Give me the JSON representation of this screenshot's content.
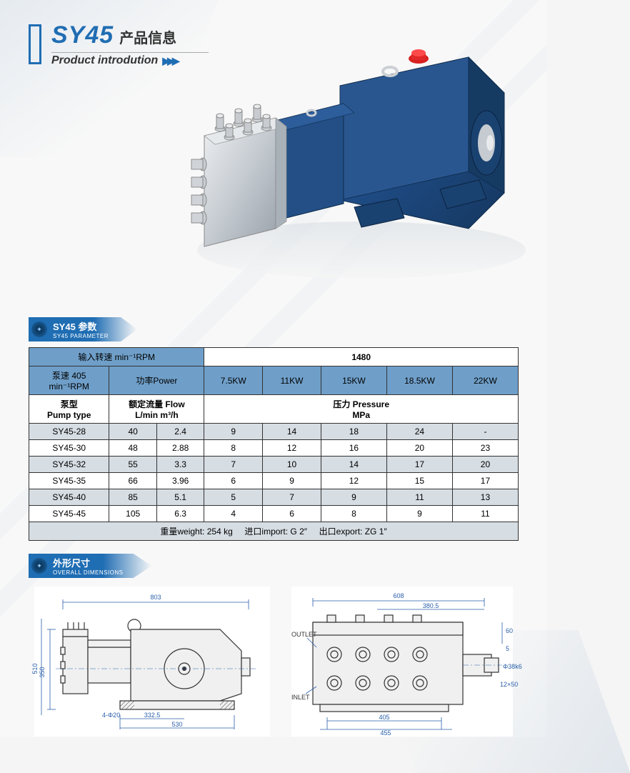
{
  "header": {
    "model": "SY45",
    "info_cn": "产品信息",
    "subtitle_en": "Product introdution",
    "accent_color": "#1f6db3"
  },
  "section_param": {
    "title_cn": "SY45  参数",
    "title_en": "SY45  PARAMETER"
  },
  "section_dims": {
    "title_cn": "外形尺寸",
    "title_en": "OVERALL  DIMENSIONS"
  },
  "table": {
    "header_row1": {
      "input_speed": "输入转速 min⁻¹RPM",
      "rpm_value": "1480"
    },
    "header_row2": {
      "pump_speed_label": "泵速   405\nmin⁻¹RPM",
      "power_label": "功率Power",
      "power_cols": [
        "7.5KW",
        "11KW",
        "15KW",
        "18.5KW",
        "22KW"
      ]
    },
    "header_row3": {
      "pump_type_label": "泵型\nPump type",
      "flow_label": "额定流量 Flow\nL/min   m³/h",
      "pressure_label": "压力 Pressure\nMPa"
    },
    "rows": [
      {
        "type": "SY45-28",
        "lmin": "40",
        "m3h": "2.4",
        "p": [
          "9",
          "14",
          "18",
          "24",
          "-"
        ]
      },
      {
        "type": "SY45-30",
        "lmin": "48",
        "m3h": "2.88",
        "p": [
          "8",
          "12",
          "16",
          "20",
          "23"
        ]
      },
      {
        "type": "SY45-32",
        "lmin": "55",
        "m3h": "3.3",
        "p": [
          "7",
          "10",
          "14",
          "17",
          "20"
        ]
      },
      {
        "type": "SY45-35",
        "lmin": "66",
        "m3h": "3.96",
        "p": [
          "6",
          "9",
          "12",
          "15",
          "17"
        ]
      },
      {
        "type": "SY45-40",
        "lmin": "85",
        "m3h": "5.1",
        "p": [
          "5",
          "7",
          "9",
          "11",
          "13"
        ]
      },
      {
        "type": "SY45-45",
        "lmin": "105",
        "m3h": "6.3",
        "p": [
          "4",
          "6",
          "8",
          "9",
          "11"
        ]
      }
    ],
    "footer": "重量weight: 254 kg     进口import: G 2″     出口export: ZG 1″",
    "colors": {
      "header_blue": "#6f9fc9",
      "row_grey": "#d6dde3",
      "row_white": "#ffffff",
      "border": "#333333"
    }
  },
  "drawing_left": {
    "dims": {
      "overall_length": "803",
      "mid_length_1": "332.5",
      "mid_length_2": "530",
      "height_1": "350",
      "height_2": "510",
      "bolt": "4-Φ20"
    }
  },
  "drawing_right": {
    "dims": {
      "overall_length": "608",
      "upper_length": "380.5",
      "lower_length_1": "405",
      "lower_length_2": "455",
      "height_top": "60",
      "height_small": "5",
      "shaft_dia": "Φ38k6",
      "key": "12×50"
    },
    "labels": {
      "outlet": "OUTLET",
      "inlet": "INLET"
    }
  }
}
